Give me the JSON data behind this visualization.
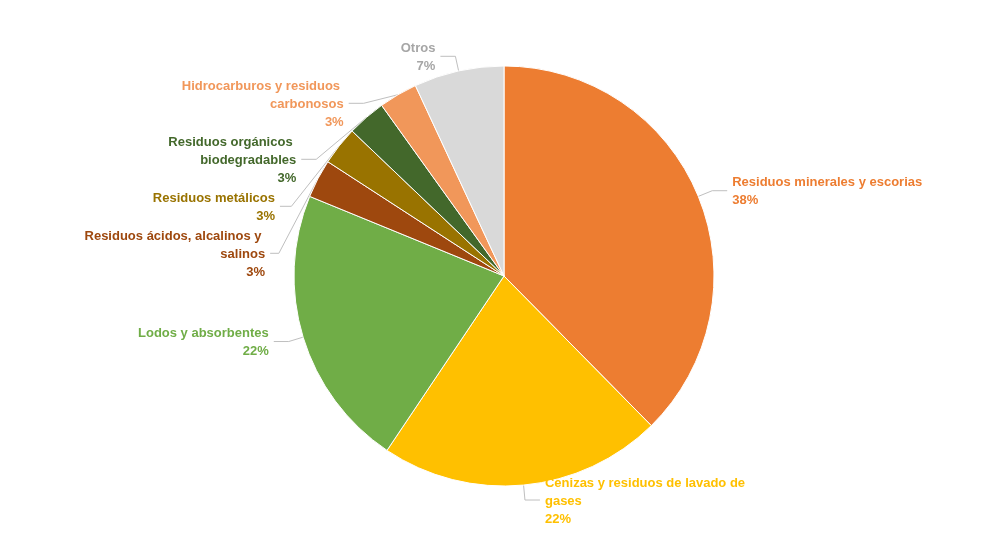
{
  "chart_data": {
    "type": "pie",
    "categories": [
      "Residuos minerales y escorias",
      "Cenizas y residuos de lavado de gases",
      "Lodos y absorbentes",
      "Residuos ácidos, alcalinos y salinos",
      "Residuos metálicos",
      "Residuos orgánicos biodegradables",
      "Hidrocarburos y residuos carbonosos",
      "Otros"
    ],
    "values": [
      38,
      22,
      22,
      3,
      3,
      3,
      3,
      7
    ],
    "value_labels": [
      "38%",
      "22%",
      "22%",
      "3%",
      "3%",
      "3%",
      "3%",
      "7%"
    ],
    "colors": [
      "#ed7d31",
      "#ffc000",
      "#70ad47",
      "#9e480e",
      "#997300",
      "#43682b",
      "#f1975a",
      "#d9d9d9"
    ],
    "legend": false
  }
}
